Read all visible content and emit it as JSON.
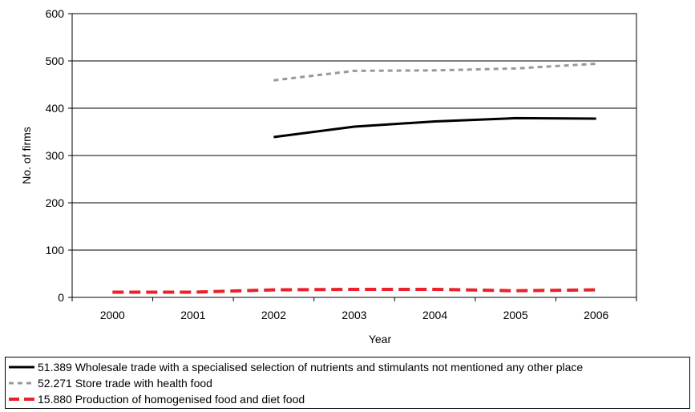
{
  "chart_data": {
    "type": "line",
    "xlabel": "Year",
    "ylabel": "No. of firms",
    "categories": [
      "2000",
      "2001",
      "2002",
      "2003",
      "2004",
      "2005",
      "2006"
    ],
    "ylim": [
      0,
      600
    ],
    "yticks": [
      "0",
      "100",
      "200",
      "300",
      "400",
      "500",
      "600"
    ],
    "grid": "horizontal",
    "legend_position": "bottom",
    "series": [
      {
        "name": "51.389 Wholesale trade with a specialised selection of nutrients and stimulants not mentioned any other place",
        "values": [
          null,
          null,
          339,
          361,
          372,
          379,
          378
        ],
        "color": "#000000",
        "style": "solid"
      },
      {
        "name": "52.271 Store trade with health food",
        "values": [
          null,
          null,
          459,
          479,
          480,
          484,
          494
        ],
        "color": "#999999",
        "style": "dashed"
      },
      {
        "name": "15.880 Production of homogenised food and diet food",
        "values": [
          11,
          11,
          16,
          17,
          17,
          14,
          16
        ],
        "color": "#e8212a",
        "style": "dashed"
      }
    ]
  }
}
